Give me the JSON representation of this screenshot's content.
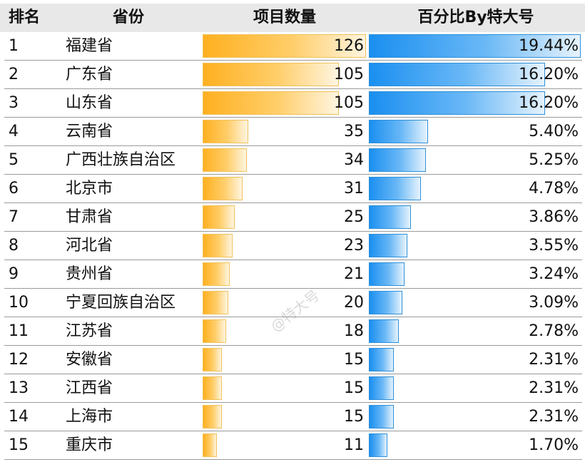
{
  "chart_data": {
    "type": "table",
    "columns": [
      "排名",
      "省份",
      "项目数量",
      "百分比By特大号"
    ],
    "rows": [
      {
        "rank": "1",
        "province": "福建省",
        "count": 126,
        "count_label": "126",
        "pct": 19.44,
        "pct_label": "19.44%"
      },
      {
        "rank": "2",
        "province": "广东省",
        "count": 105,
        "count_label": "105",
        "pct": 16.2,
        "pct_label": "16.20%"
      },
      {
        "rank": "3",
        "province": "山东省",
        "count": 105,
        "count_label": "105",
        "pct": 16.2,
        "pct_label": "16.20%"
      },
      {
        "rank": "4",
        "province": "云南省",
        "count": 35,
        "count_label": "35",
        "pct": 5.4,
        "pct_label": "5.40%"
      },
      {
        "rank": "5",
        "province": "广西壮族自治区",
        "count": 34,
        "count_label": "34",
        "pct": 5.25,
        "pct_label": "5.25%"
      },
      {
        "rank": "6",
        "province": "北京市",
        "count": 31,
        "count_label": "31",
        "pct": 4.78,
        "pct_label": "4.78%"
      },
      {
        "rank": "7",
        "province": "甘肃省",
        "count": 25,
        "count_label": "25",
        "pct": 3.86,
        "pct_label": "3.86%"
      },
      {
        "rank": "8",
        "province": "河北省",
        "count": 23,
        "count_label": "23",
        "pct": 3.55,
        "pct_label": "3.55%"
      },
      {
        "rank": "9",
        "province": "贵州省",
        "count": 21,
        "count_label": "21",
        "pct": 3.24,
        "pct_label": "3.24%"
      },
      {
        "rank": "10",
        "province": "宁夏回族自治区",
        "count": 20,
        "count_label": "20",
        "pct": 3.09,
        "pct_label": "3.09%"
      },
      {
        "rank": "11",
        "province": "江苏省",
        "count": 18,
        "count_label": "18",
        "pct": 2.78,
        "pct_label": "2.78%"
      },
      {
        "rank": "12",
        "province": "安徽省",
        "count": 15,
        "count_label": "15",
        "pct": 2.31,
        "pct_label": "2.31%"
      },
      {
        "rank": "13",
        "province": "江西省",
        "count": 15,
        "count_label": "15",
        "pct": 2.31,
        "pct_label": "2.31%"
      },
      {
        "rank": "14",
        "province": "上海市",
        "count": 15,
        "count_label": "15",
        "pct": 2.31,
        "pct_label": "2.31%"
      },
      {
        "rank": "15",
        "province": "重庆市",
        "count": 11,
        "count_label": "11",
        "pct": 1.7,
        "pct_label": "1.70%"
      }
    ],
    "count_max": 126,
    "pct_max": 19.44,
    "colors": {
      "count_bar": "#ffb020",
      "pct_bar": "#1a8ff0",
      "header_bg": "#e8e8e8"
    }
  },
  "watermark": "@特大号"
}
